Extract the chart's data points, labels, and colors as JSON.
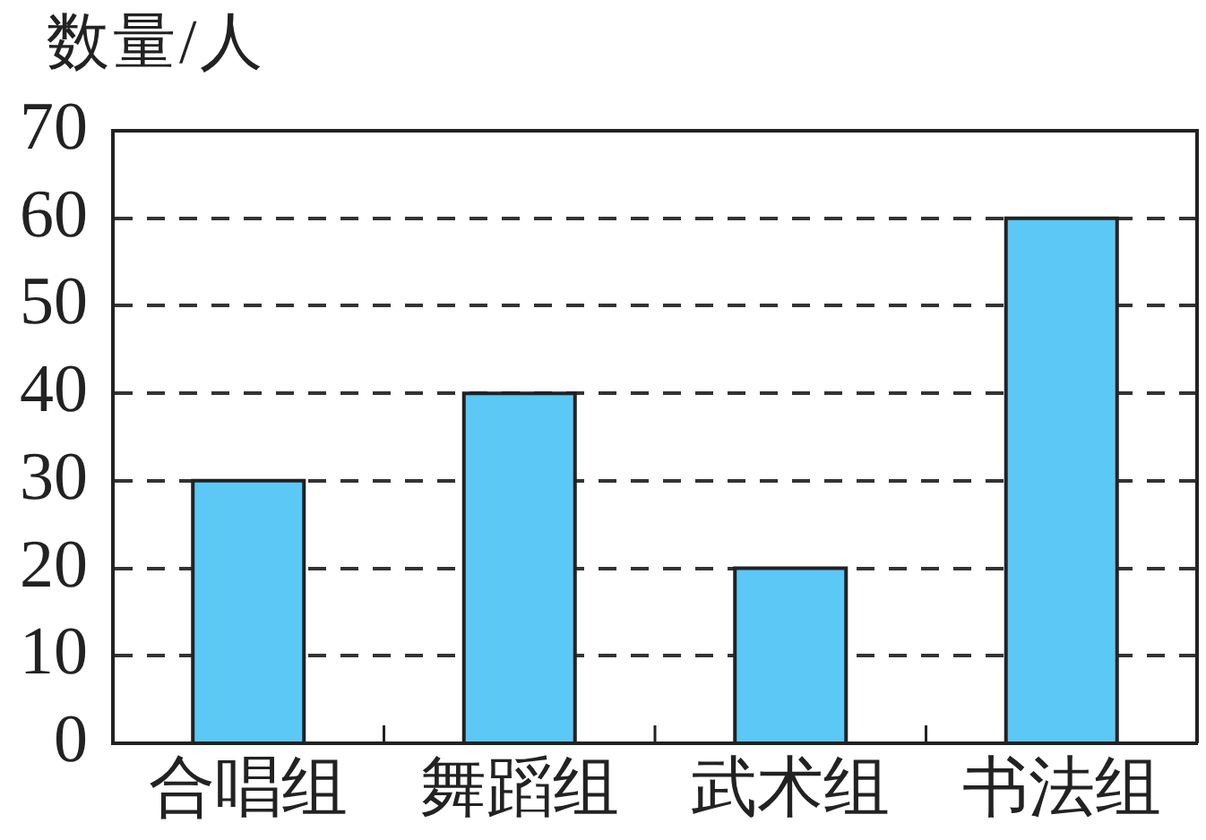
{
  "chart_data": {
    "type": "bar",
    "ylabel": "数量/人",
    "categories": [
      "合唱组",
      "舞蹈组",
      "武术组",
      "书法组"
    ],
    "values": [
      30,
      40,
      20,
      60
    ],
    "color": "#5bc8f5",
    "ylim": [
      0,
      70
    ],
    "yticks": [
      0,
      10,
      20,
      30,
      40,
      50,
      60,
      70
    ],
    "grid": "y"
  }
}
